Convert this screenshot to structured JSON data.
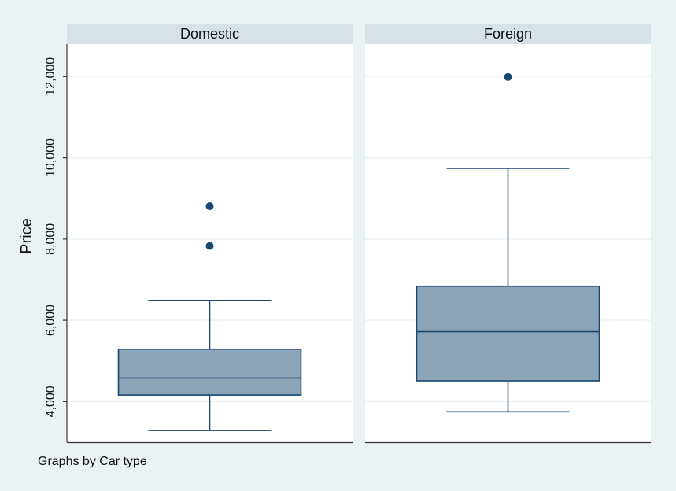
{
  "note": "Graphs by Car type",
  "chart_data": {
    "type": "box",
    "ylabel": "Price",
    "ylim": [
      3000,
      12800
    ],
    "yticks": [
      4000,
      6000,
      8000,
      10000,
      12000
    ],
    "ytick_labels": [
      "4,000",
      "6,000",
      "8,000",
      "10,000",
      "12,000"
    ],
    "grid": true,
    "panels": [
      {
        "name": "Domestic",
        "whisker_low": 3290,
        "q1": 4160,
        "median": 4580,
        "q3": 5290,
        "whisker_high": 6490,
        "outliers": [
          7830,
          8810
        ]
      },
      {
        "name": "Foreign",
        "whisker_low": 3750,
        "q1": 4510,
        "median": 5720,
        "q3": 6840,
        "whisker_high": 9740,
        "outliers": [
          11990
        ]
      }
    ],
    "colors": {
      "box_fill": "#8ca4b8",
      "box_stroke": "#1a476f",
      "outlier": "#1a476f",
      "panel_bg": "#ffffff",
      "strip_bg": "#d6e2e8",
      "grid": "#eaf2f3",
      "page_bg": "#eaf2f3"
    }
  }
}
